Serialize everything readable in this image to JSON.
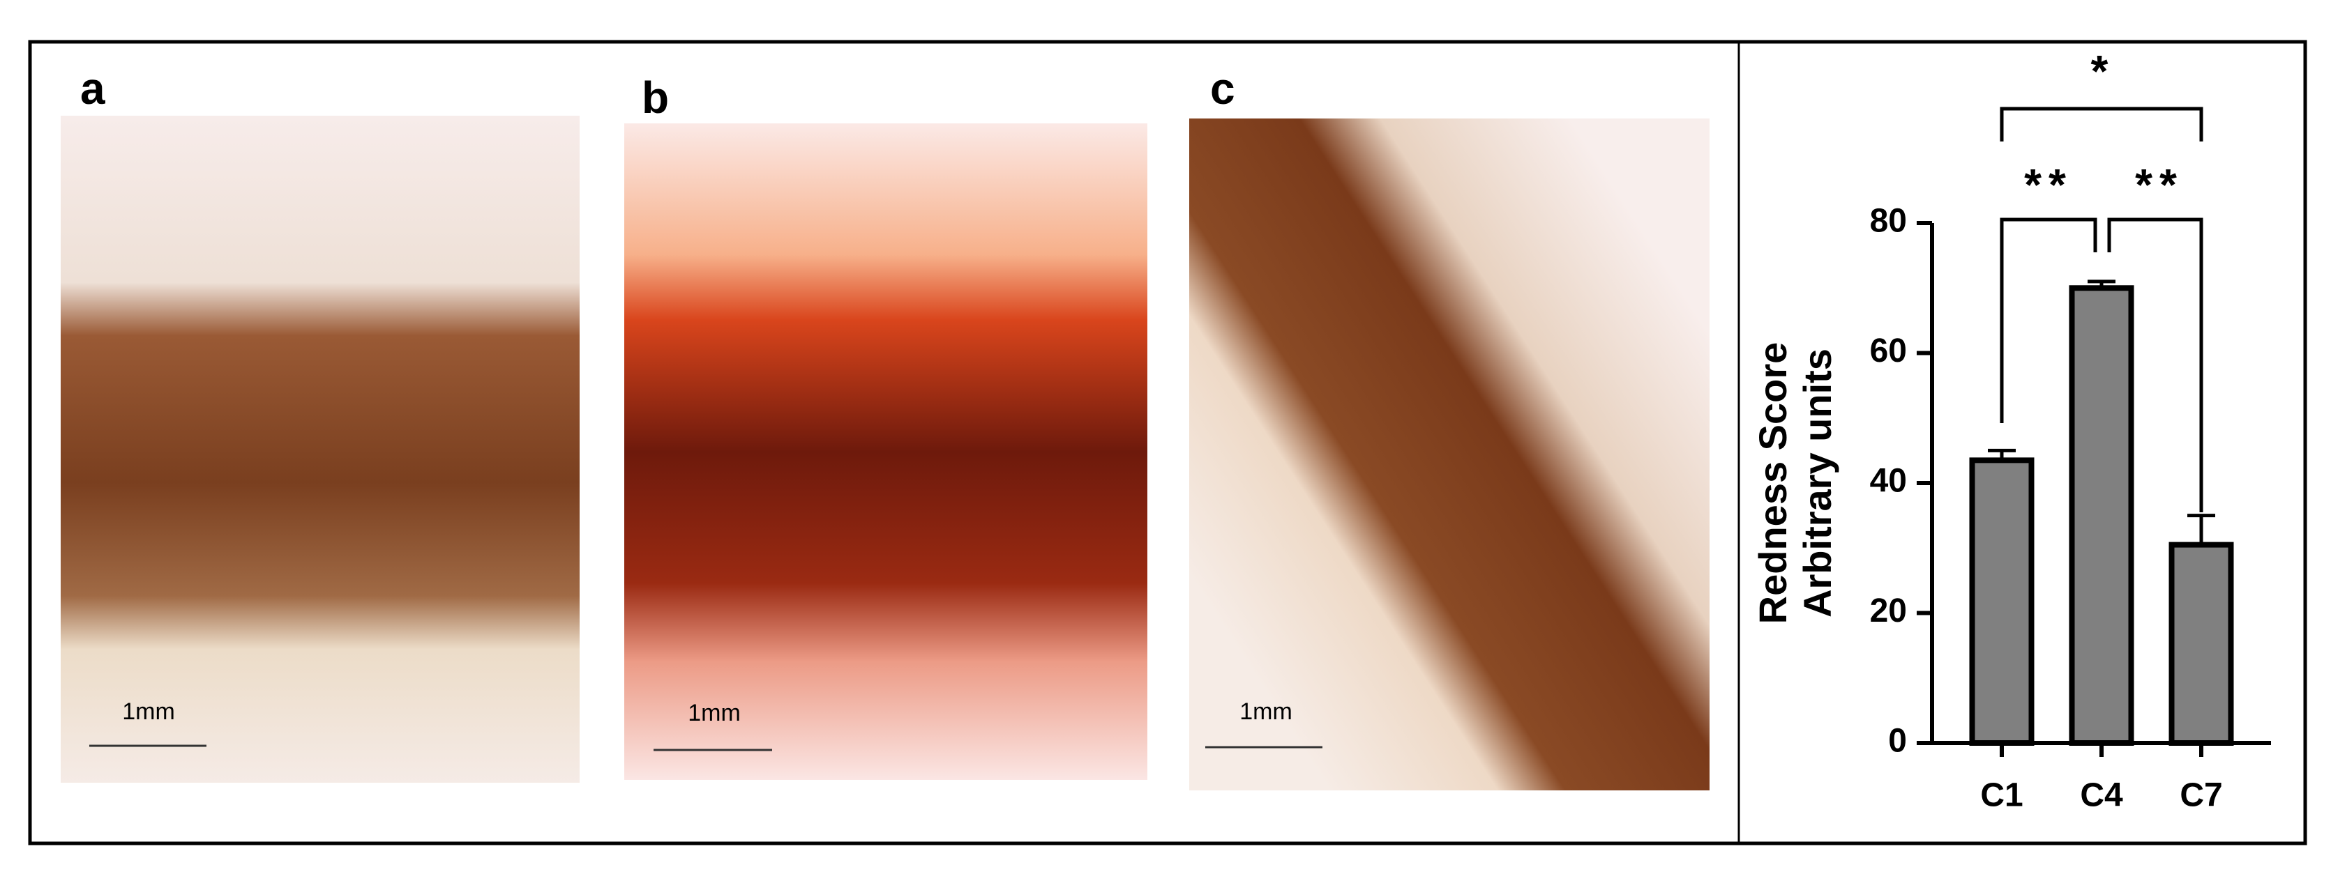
{
  "panels": [
    {
      "label": "a",
      "scale": "1mm"
    },
    {
      "label": "b",
      "scale": "1mm"
    },
    {
      "label": "c",
      "scale": "1mm"
    }
  ],
  "chart_data": {
    "type": "bar",
    "y_label": [
      "Redness Score",
      "Arbitrary units"
    ],
    "categories": [
      "C1",
      "C4",
      "C7"
    ],
    "values": [
      43.5,
      70,
      30.5
    ],
    "errors": [
      1.5,
      1,
      4.5
    ],
    "color": "#808080",
    "ylim": [
      0,
      80
    ],
    "yticks": [
      0,
      20,
      40,
      60,
      80
    ],
    "annotations": [
      "*",
      "**",
      "**"
    ]
  }
}
